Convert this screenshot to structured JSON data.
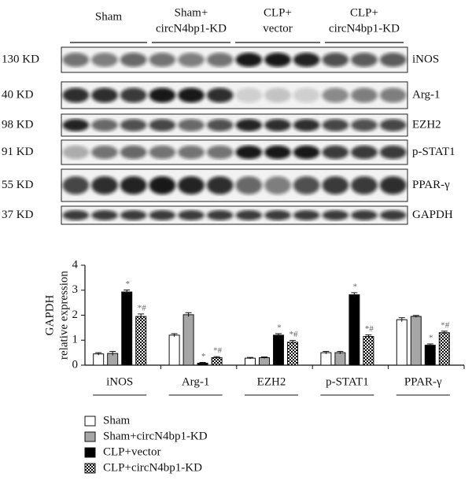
{
  "blot": {
    "groups": [
      [
        "Sham"
      ],
      [
        "Sham+",
        "circN4bp1-KD"
      ],
      [
        "CLP+",
        "vector"
      ],
      [
        "CLP+",
        "circN4bp1-KD"
      ]
    ],
    "rows": [
      {
        "size": "130 KD",
        "protein": "iNOS"
      },
      {
        "size": "40 KD",
        "protein": "Arg-1"
      },
      {
        "size": "98 KD",
        "protein": "EZH2"
      },
      {
        "size": "91 KD",
        "protein": "p-STAT1"
      },
      {
        "size": "55 KD",
        "protein": "PPAR-γ"
      },
      {
        "size": "37 KD",
        "protein": "GAPDH"
      }
    ]
  },
  "chart_data": {
    "type": "bar",
    "ylabel": [
      "GAPDH",
      "relative expression"
    ],
    "categories": [
      "iNOS",
      "Arg-1",
      "EZH2",
      "p-STAT1",
      "PPAR-γ"
    ],
    "series": [
      {
        "name": "Sham",
        "color": "#ffffff",
        "values": [
          0.45,
          1.2,
          0.28,
          0.5,
          1.82
        ],
        "errors": [
          0.05,
          0.06,
          0.03,
          0.05,
          0.08
        ]
      },
      {
        "name": "Sham+circN4bp1-KD",
        "color": "#a6a6a6",
        "values": [
          0.47,
          2.02,
          0.3,
          0.5,
          1.95
        ],
        "errors": [
          0.08,
          0.08,
          0.03,
          0.05,
          0.04
        ]
      },
      {
        "name": "CLP+vector",
        "color": "#000000",
        "values": [
          2.93,
          0.08,
          1.2,
          2.82,
          0.8
        ],
        "errors": [
          0.08,
          0.03,
          0.06,
          0.08,
          0.05
        ],
        "annotations": [
          "*",
          "*",
          "*",
          "*",
          "*"
        ]
      },
      {
        "name": "CLP+circN4bp1-KD",
        "color": "#000000",
        "pattern": "checker",
        "values": [
          1.95,
          0.3,
          0.92,
          1.15,
          1.3
        ],
        "errors": [
          0.1,
          0.04,
          0.07,
          0.06,
          0.06
        ],
        "annotations": [
          "*#",
          "*#",
          "*#",
          "*#",
          "*#"
        ]
      }
    ],
    "ylim": [
      0,
      4
    ],
    "yticks": [
      0,
      1,
      2,
      3,
      4
    ],
    "grid": false
  }
}
